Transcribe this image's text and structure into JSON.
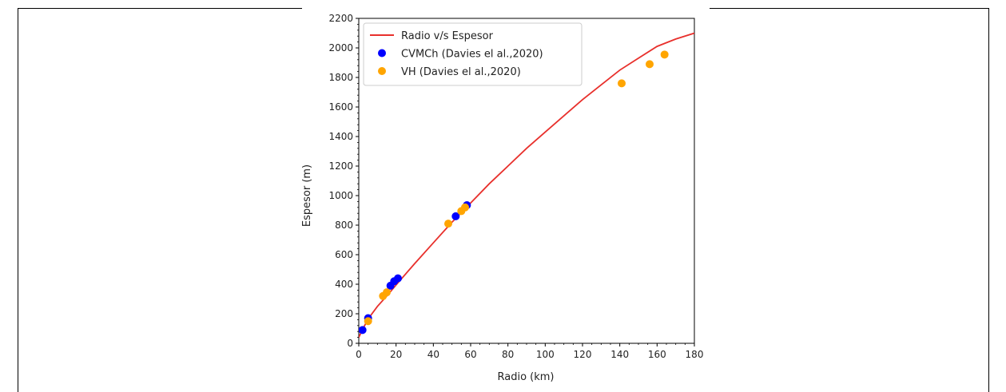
{
  "chart_data": {
    "type": "scatter",
    "xlabel": "Radio (km)",
    "ylabel": "Espesor (m)",
    "xlim": [
      0,
      180
    ],
    "ylim": [
      0,
      2200
    ],
    "xticks": [
      "0",
      "20",
      "40",
      "60",
      "80",
      "100",
      "120",
      "140",
      "160",
      "180"
    ],
    "yticks": [
      "0",
      "200",
      "400",
      "600",
      "800",
      "1000",
      "1200",
      "1400",
      "1600",
      "1800",
      "2000",
      "2200"
    ],
    "grid": false,
    "legend_position": "top-left",
    "series": [
      {
        "name": "Radio v/s Espesor",
        "kind": "line",
        "color": "#e8302c",
        "x": [
          0,
          2,
          5,
          10,
          15,
          20,
          30,
          40,
          50,
          60,
          70,
          80,
          90,
          100,
          110,
          120,
          130,
          140,
          150,
          160,
          170,
          180
        ],
        "y": [
          40,
          93,
          165,
          250,
          320,
          395,
          540,
          680,
          820,
          950,
          1080,
          1200,
          1320,
          1430,
          1540,
          1650,
          1750,
          1850,
          1930,
          2010,
          2060,
          2100
        ]
      },
      {
        "name": "CVMCh (Davies el al.,2020)",
        "kind": "scatter",
        "color": "#0000ff",
        "x": [
          2,
          5,
          17,
          19,
          21,
          52,
          58
        ],
        "y": [
          90,
          170,
          390,
          420,
          440,
          860,
          935
        ]
      },
      {
        "name": "VH (Davies el al.,2020)",
        "kind": "scatter",
        "color": "#ffa500",
        "x": [
          5,
          13,
          15,
          48,
          55,
          57,
          141,
          156,
          164
        ],
        "y": [
          150,
          320,
          345,
          810,
          895,
          920,
          1760,
          1890,
          1955
        ]
      }
    ]
  }
}
